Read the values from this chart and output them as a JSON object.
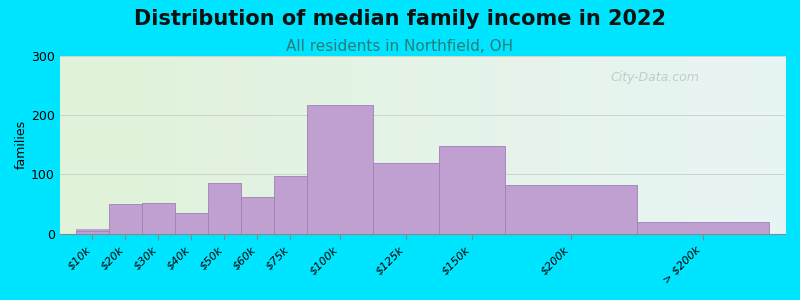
{
  "title": "Distribution of median family income in 2022",
  "subtitle": "All residents in Northfield, OH",
  "ylabel": "families",
  "categories": [
    "$10k",
    "$20k",
    "$30k",
    "$40k",
    "$50k",
    "$60k",
    "$75k",
    "$100k",
    "$125k",
    "$150k",
    "$200k",
    "> $200k"
  ],
  "values": [
    5,
    50,
    52,
    35,
    85,
    62,
    98,
    218,
    120,
    148,
    82,
    20
  ],
  "bar_lefts": [
    0,
    1,
    2,
    3,
    4,
    5,
    6,
    7,
    9,
    11,
    13,
    17
  ],
  "bar_widths": [
    1,
    1,
    1,
    1,
    1,
    1,
    1,
    2,
    2,
    2,
    4,
    4
  ],
  "bar_color": "#c0a0d0",
  "bar_edge_color": "#a080b8",
  "ylim": [
    0,
    300
  ],
  "yticks": [
    0,
    100,
    200,
    300
  ],
  "bg_outer": "#00e5ff",
  "grad_left": "#dff0d8",
  "grad_right": "#e8f4f0",
  "title_fontsize": 15,
  "subtitle_fontsize": 11,
  "ylabel_fontsize": 9,
  "watermark": "City-Data.com",
  "watermark_color": "#b8c8c0",
  "figsize": [
    8.0,
    3.0
  ],
  "dpi": 100
}
